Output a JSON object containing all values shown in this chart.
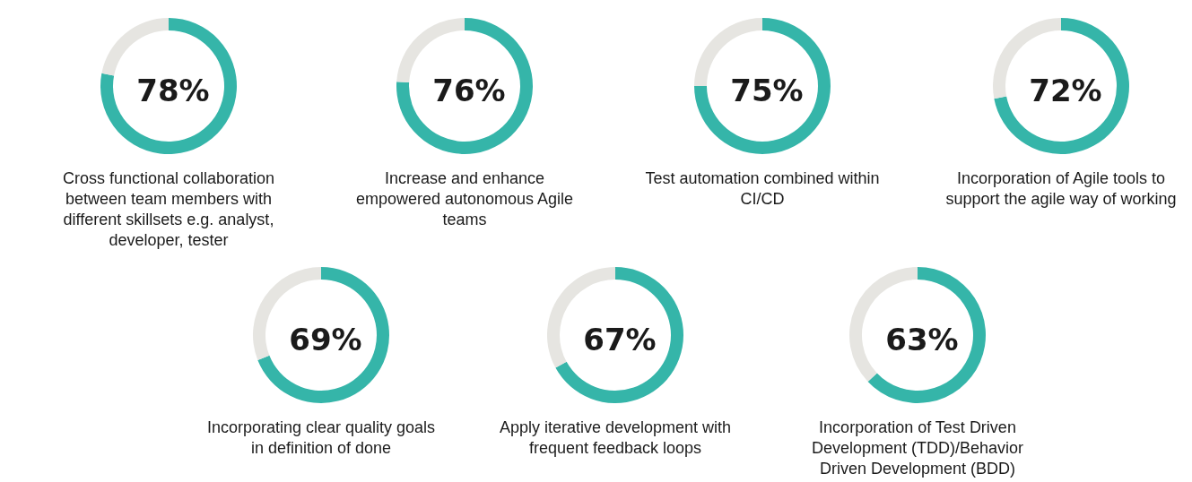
{
  "chart_data": [
    {
      "type": "donut",
      "categories": [
        "Cross functional collaboration between team members with different skillsets e.g. analyst, developer, tester",
        null
      ],
      "values": [
        78,
        22
      ],
      "colors": [
        "#35b5a9",
        "#e6e5e1"
      ],
      "value_labels": [
        "78%",
        null
      ]
    },
    {
      "type": "donut",
      "categories": [
        "Increase and enhance empowered autonomous Agile teams",
        null
      ],
      "values": [
        76,
        24
      ],
      "colors": [
        "#35b5a9",
        "#e6e5e1"
      ],
      "value_labels": [
        "76%",
        null
      ]
    },
    {
      "type": "donut",
      "categories": [
        "Test automation combined within CI/CD",
        null
      ],
      "values": [
        75,
        25
      ],
      "colors": [
        "#35b5a9",
        "#e6e5e1"
      ],
      "value_labels": [
        "75%",
        null
      ]
    },
    {
      "type": "donut",
      "categories": [
        "Incorporation of Agile tools to support the agile way of working",
        null
      ],
      "values": [
        72,
        28
      ],
      "colors": [
        "#35b5a9",
        "#e6e5e1"
      ],
      "value_labels": [
        "72%",
        null
      ]
    },
    {
      "type": "donut",
      "categories": [
        "Incorporating clear quality goals in definition of done",
        null
      ],
      "values": [
        69,
        31
      ],
      "colors": [
        "#35b5a9",
        "#e6e5e1"
      ],
      "value_labels": [
        "69%",
        null
      ]
    },
    {
      "type": "donut",
      "categories": [
        "Apply iterative development with frequent feedback loops",
        null
      ],
      "values": [
        67,
        33
      ],
      "colors": [
        "#35b5a9",
        "#e6e5e1"
      ],
      "value_labels": [
        "67%",
        null
      ]
    },
    {
      "type": "donut",
      "categories": [
        "Incorporation of Test Driven Development (TDD)/Behavior Driven Development (BDD)",
        null
      ],
      "values": [
        63,
        37
      ],
      "colors": [
        "#35b5a9",
        "#e6e5e1"
      ],
      "value_labels": [
        "63%",
        null
      ]
    }
  ]
}
